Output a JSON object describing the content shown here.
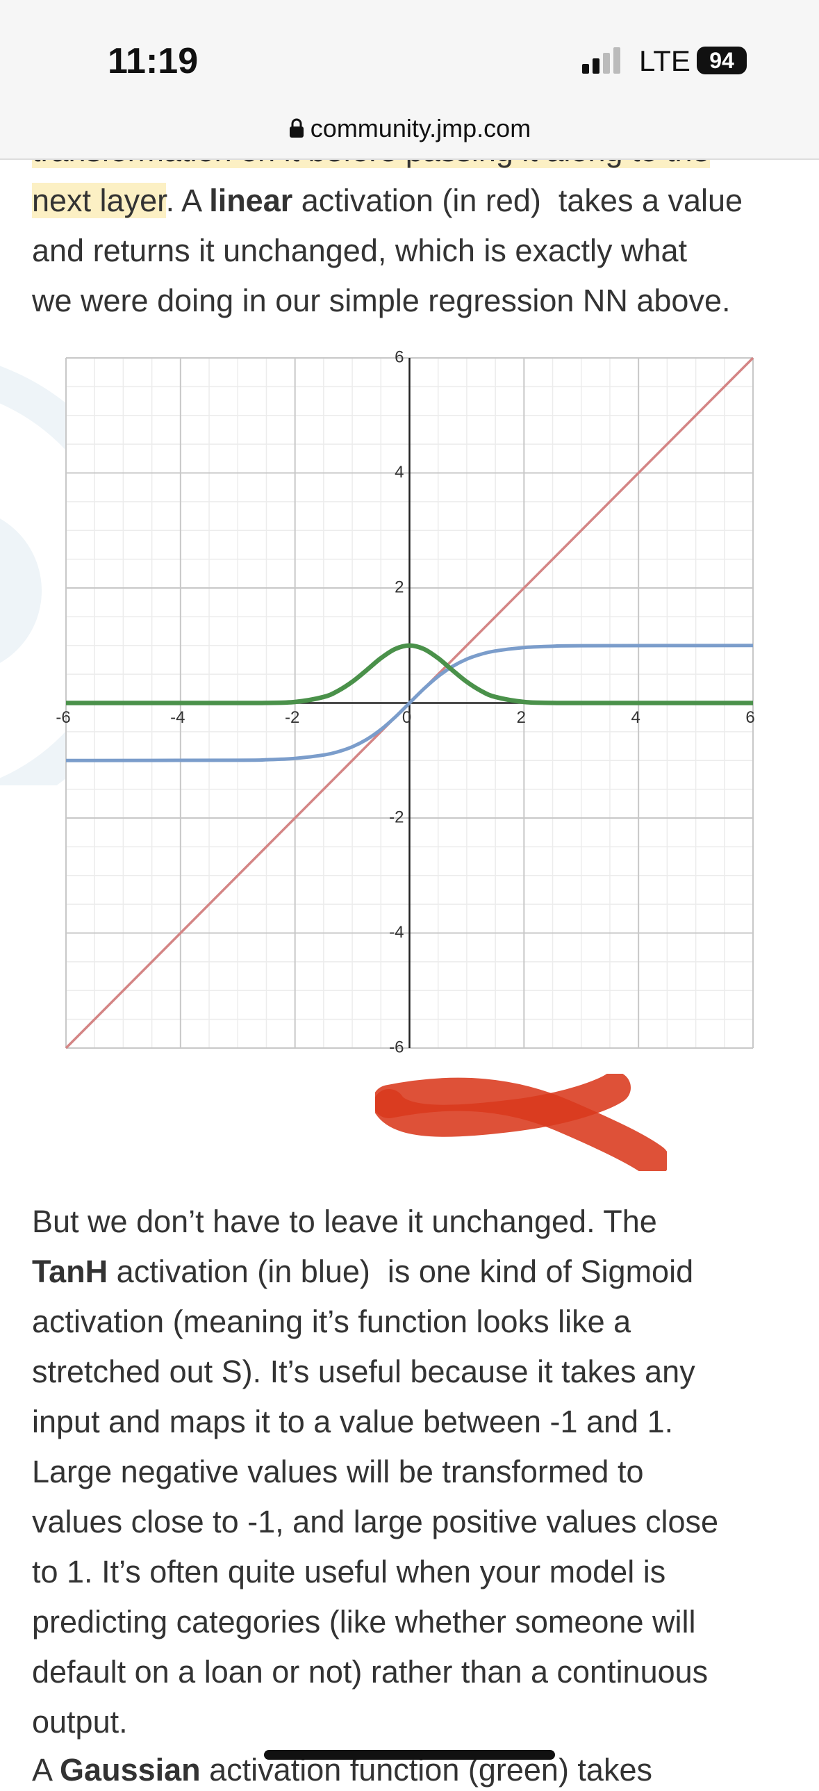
{
  "status": {
    "time": "11:19",
    "network": "LTE",
    "battery": "94",
    "url": "community.jmp.com"
  },
  "article": {
    "paragraphs": [
      {
        "lines": [
          [
            {
              "text": "transformation on it before passing it along to the",
              "highlight": true
            }
          ],
          [
            {
              "text": "next layer",
              "highlight": true
            },
            {
              "text": ". A "
            },
            {
              "text": "linear",
              "bold": true
            },
            {
              "text": " activation (in red)  takes a value"
            }
          ],
          [
            {
              "text": "and returns it unchanged, which is exactly what"
            }
          ],
          [
            {
              "text": "we were doing in our simple regression NN above."
            }
          ]
        ]
      },
      {
        "lines": [
          [
            {
              "text": "But we don’t have to leave it unchanged. The"
            }
          ],
          [
            {
              "text": "TanH",
              "bold": true
            },
            {
              "text": " activation (in blue)  is one kind of Sigmoid"
            }
          ],
          [
            {
              "text": "activation (meaning it’s function looks like a"
            }
          ],
          [
            {
              "text": "stretched out S). It’s useful because it takes any"
            }
          ],
          [
            {
              "text": "input and maps it to a value between -1 and 1."
            }
          ],
          [
            {
              "text": "Large negative values will be transformed to"
            }
          ],
          [
            {
              "text": "values close to -1, and large positive values close"
            }
          ],
          [
            {
              "text": "to 1. It’s often quite useful when your model is"
            }
          ],
          [
            {
              "text": "predicting categories (like whether someone will"
            }
          ],
          [
            {
              "text": "default on a loan or not) rather than a continuous"
            }
          ],
          [
            {
              "text": "output."
            }
          ]
        ]
      },
      {
        "lines": [
          [
            {
              "text": "A "
            },
            {
              "text": "Gaussian",
              "bold": true
            },
            {
              "text": " activation function (green) takes"
            }
          ]
        ]
      }
    ]
  },
  "chart_data": {
    "type": "line",
    "x": [
      -6,
      -3,
      -2.5,
      -2,
      -1.5,
      -1.25,
      -1,
      -0.75,
      -0.5,
      -0.25,
      0,
      0.25,
      0.5,
      0.75,
      1,
      1.25,
      1.5,
      2,
      2.5,
      3,
      6
    ],
    "series": [
      {
        "color": "#d48585",
        "values": [
          -6,
          -3,
          -2.5,
          -2,
          -1.5,
          -1.25,
          -1,
          -0.75,
          -0.5,
          -0.25,
          0,
          0.25,
          0.5,
          0.75,
          1,
          1.25,
          1.5,
          2,
          2.5,
          3,
          6
        ]
      },
      {
        "color": "#7b9dcb",
        "values": [
          -1,
          -0.995,
          -0.987,
          -0.964,
          -0.905,
          -0.848,
          -0.762,
          -0.635,
          -0.462,
          -0.245,
          0,
          0.245,
          0.462,
          0.635,
          0.762,
          0.848,
          0.905,
          0.964,
          0.987,
          0.995,
          1
        ]
      },
      {
        "color": "#4a914a",
        "values": [
          0,
          0,
          0.002,
          0.018,
          0.105,
          0.21,
          0.368,
          0.57,
          0.779,
          0.939,
          1,
          0.939,
          0.779,
          0.57,
          0.368,
          0.21,
          0.105,
          0.018,
          0.002,
          0,
          0
        ]
      }
    ],
    "xlim": [
      -6,
      6
    ],
    "ylim": [
      -6,
      6
    ],
    "xticks": [
      -6,
      -4,
      -2,
      0,
      2,
      4,
      6
    ],
    "yticks": [
      -6,
      -4,
      -2,
      2,
      4,
      6
    ],
    "grid": true,
    "minor_grid": 0.5
  }
}
